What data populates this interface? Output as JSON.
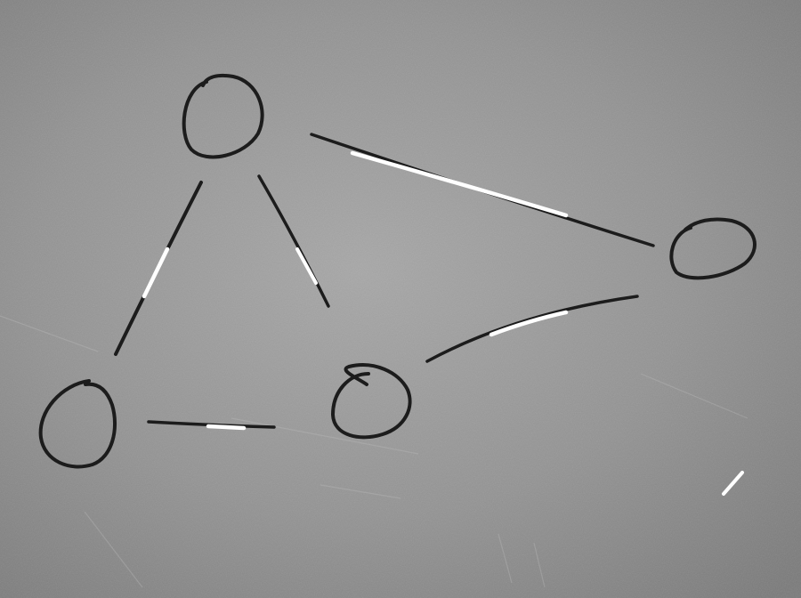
{
  "diagram": {
    "style": "hand-drawn chalk graph on a grey board",
    "colors": {
      "board": "#929292",
      "board_light": "#a9a9a9",
      "board_dark": "#777777",
      "ink": "#1c1c1c",
      "highlight": "#ffffff"
    },
    "nodes": [
      {
        "id": "n1",
        "label": ""
      },
      {
        "id": "n2",
        "label": ""
      },
      {
        "id": "n3",
        "label": ""
      },
      {
        "id": "n4",
        "label": ""
      }
    ],
    "edges": [
      {
        "id": "e-n1-n2",
        "from": "n1",
        "to": "n2"
      },
      {
        "id": "e-n1-n3",
        "from": "n1",
        "to": "n3"
      },
      {
        "id": "e-n1-n4",
        "from": "n1",
        "to": "n4"
      },
      {
        "id": "e-n2-n3",
        "from": "n2",
        "to": "n3"
      },
      {
        "id": "e-n3-n4",
        "from": "n3",
        "to": "n4"
      }
    ]
  }
}
